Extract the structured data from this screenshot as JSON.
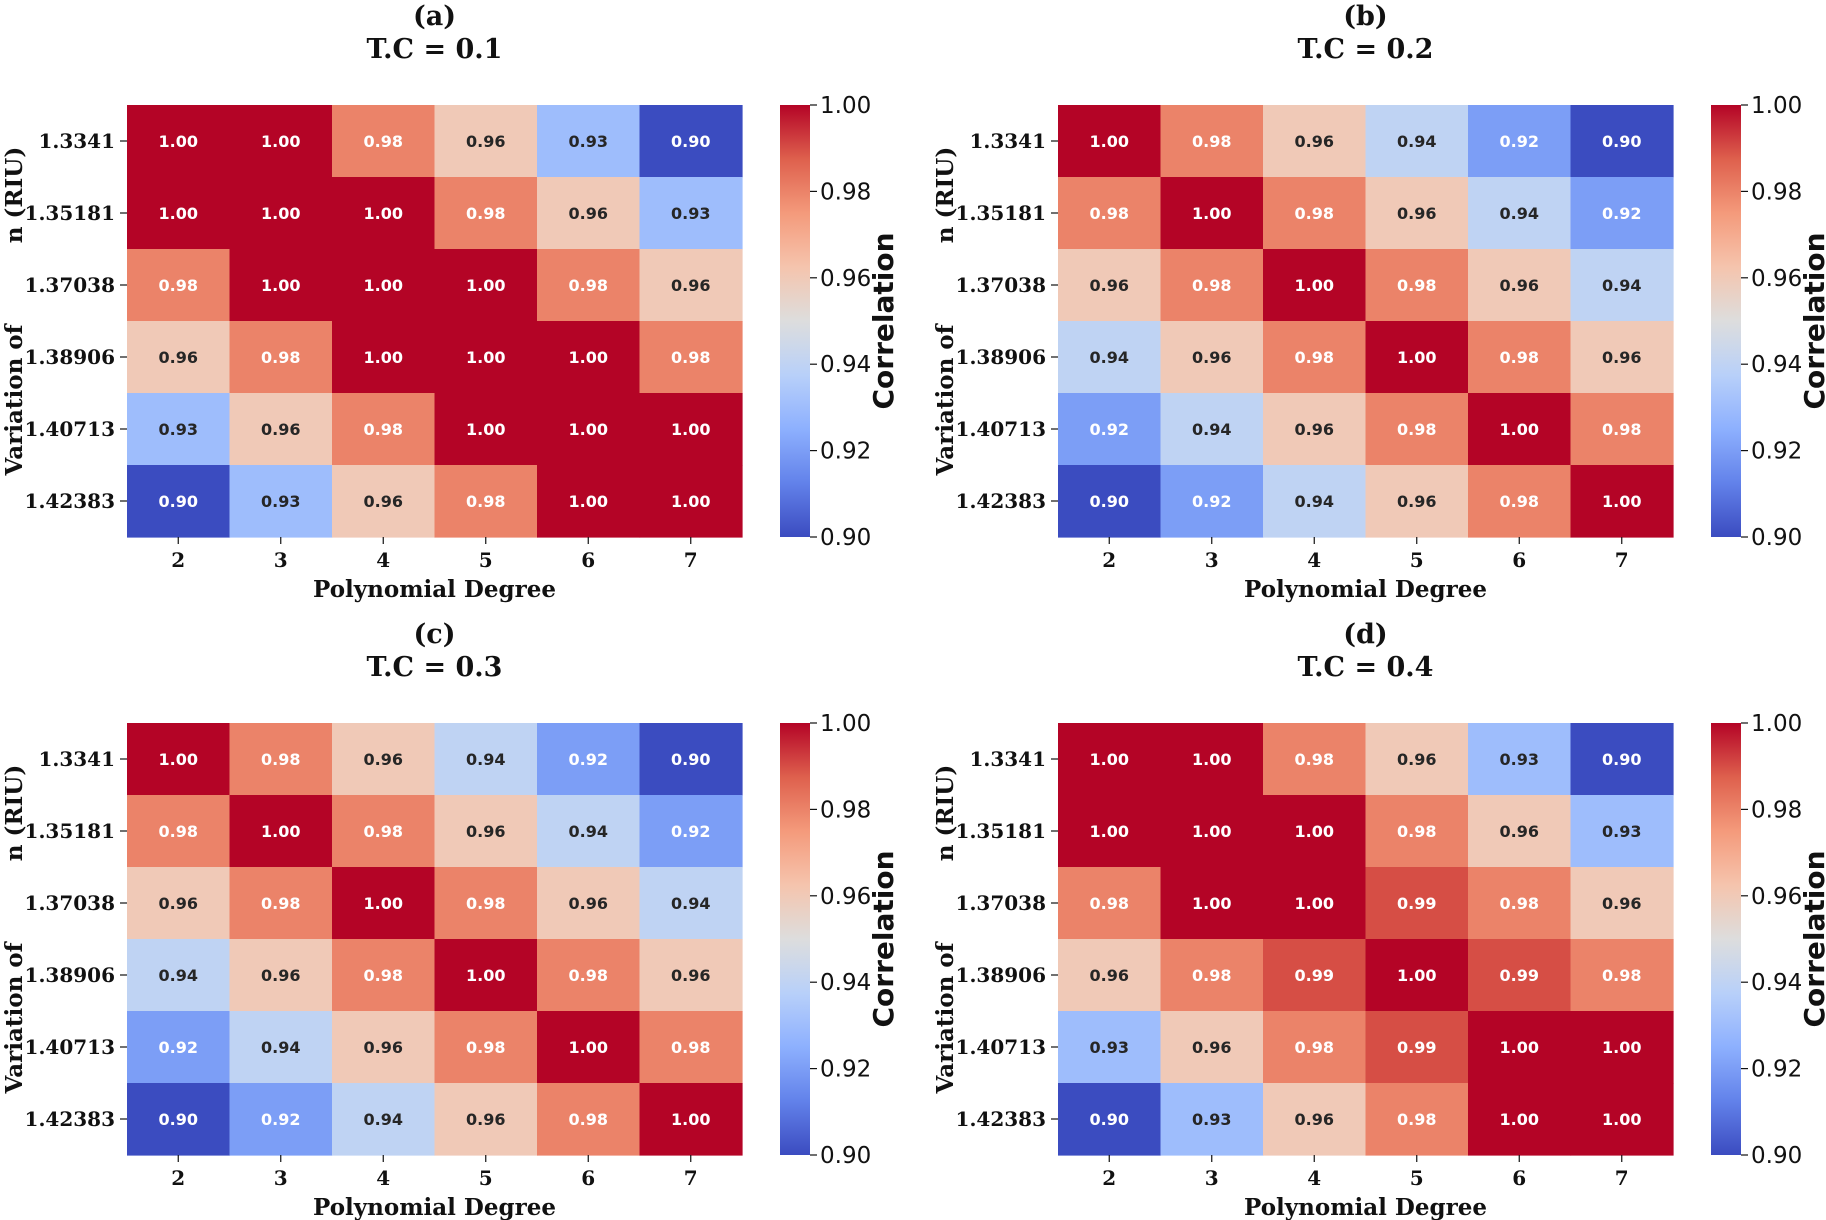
{
  "chart_data": [
    {
      "type": "heatmap",
      "panel": "(a)",
      "title": "T.C = 0.1",
      "xlabel": "Polynomial Degree",
      "ylabel_top": "n (RIU)",
      "ylabel_bottom": "Variation of",
      "x_categories": [
        "2",
        "3",
        "4",
        "5",
        "6",
        "7"
      ],
      "y_categories": [
        "1.3341",
        "1.35181",
        "1.37038",
        "1.38906",
        "1.40713",
        "1.42383"
      ],
      "values": [
        [
          1.0,
          1.0,
          0.98,
          0.96,
          0.93,
          0.9
        ],
        [
          1.0,
          1.0,
          1.0,
          0.98,
          0.96,
          0.93
        ],
        [
          0.98,
          1.0,
          1.0,
          1.0,
          0.98,
          0.96
        ],
        [
          0.96,
          0.98,
          1.0,
          1.0,
          1.0,
          0.98
        ],
        [
          0.93,
          0.96,
          0.98,
          1.0,
          1.0,
          1.0
        ],
        [
          0.9,
          0.93,
          0.96,
          0.98,
          1.0,
          1.0
        ]
      ],
      "colorbar_label": "Correlation",
      "colorbar_ticks": [
        "0.90",
        "0.92",
        "0.94",
        "0.96",
        "0.98",
        "1.00"
      ],
      "vmin": 0.9,
      "vmax": 1.0
    },
    {
      "type": "heatmap",
      "panel": "(b)",
      "title": "T.C = 0.2",
      "xlabel": "Polynomial Degree",
      "ylabel_top": "n (RIU)",
      "ylabel_bottom": "Variation of",
      "x_categories": [
        "2",
        "3",
        "4",
        "5",
        "6",
        "7"
      ],
      "y_categories": [
        "1.3341",
        "1.35181",
        "1.37038",
        "1.38906",
        "1.40713",
        "1.42383"
      ],
      "values": [
        [
          1.0,
          0.98,
          0.96,
          0.94,
          0.92,
          0.9
        ],
        [
          0.98,
          1.0,
          0.98,
          0.96,
          0.94,
          0.92
        ],
        [
          0.96,
          0.98,
          1.0,
          0.98,
          0.96,
          0.94
        ],
        [
          0.94,
          0.96,
          0.98,
          1.0,
          0.98,
          0.96
        ],
        [
          0.92,
          0.94,
          0.96,
          0.98,
          1.0,
          0.98
        ],
        [
          0.9,
          0.92,
          0.94,
          0.96,
          0.98,
          1.0
        ]
      ],
      "colorbar_label": "Correlation",
      "colorbar_ticks": [
        "0.90",
        "0.92",
        "0.94",
        "0.96",
        "0.98",
        "1.00"
      ],
      "vmin": 0.9,
      "vmax": 1.0
    },
    {
      "type": "heatmap",
      "panel": "(c)",
      "title": "T.C = 0.3",
      "xlabel": "Polynomial Degree",
      "ylabel_top": "n (RIU)",
      "ylabel_bottom": "Variation of",
      "x_categories": [
        "2",
        "3",
        "4",
        "5",
        "6",
        "7"
      ],
      "y_categories": [
        "1.3341",
        "1.35181",
        "1.37038",
        "1.38906",
        "1.40713",
        "1.42383"
      ],
      "values": [
        [
          1.0,
          0.98,
          0.96,
          0.94,
          0.92,
          0.9
        ],
        [
          0.98,
          1.0,
          0.98,
          0.96,
          0.94,
          0.92
        ],
        [
          0.96,
          0.98,
          1.0,
          0.98,
          0.96,
          0.94
        ],
        [
          0.94,
          0.96,
          0.98,
          1.0,
          0.98,
          0.96
        ],
        [
          0.92,
          0.94,
          0.96,
          0.98,
          1.0,
          0.98
        ],
        [
          0.9,
          0.92,
          0.94,
          0.96,
          0.98,
          1.0
        ]
      ],
      "colorbar_label": "Correlation",
      "colorbar_ticks": [
        "0.90",
        "0.92",
        "0.94",
        "0.96",
        "0.98",
        "1.00"
      ],
      "vmin": 0.9,
      "vmax": 1.0
    },
    {
      "type": "heatmap",
      "panel": "(d)",
      "title": "T.C = 0.4",
      "xlabel": "Polynomial Degree",
      "ylabel_top": "n (RIU)",
      "ylabel_bottom": "Variation of",
      "x_categories": [
        "2",
        "3",
        "4",
        "5",
        "6",
        "7"
      ],
      "y_categories": [
        "1.3341",
        "1.35181",
        "1.37038",
        "1.38906",
        "1.40713",
        "1.42383"
      ],
      "values": [
        [
          1.0,
          1.0,
          0.98,
          0.96,
          0.93,
          0.9
        ],
        [
          1.0,
          1.0,
          1.0,
          0.98,
          0.96,
          0.93
        ],
        [
          0.98,
          1.0,
          1.0,
          0.99,
          0.98,
          0.96
        ],
        [
          0.96,
          0.98,
          0.99,
          1.0,
          0.99,
          0.98
        ],
        [
          0.93,
          0.96,
          0.98,
          0.99,
          1.0,
          1.0
        ],
        [
          0.9,
          0.93,
          0.96,
          0.98,
          1.0,
          1.0
        ]
      ],
      "colorbar_label": "Correlation",
      "colorbar_ticks": [
        "0.90",
        "0.92",
        "0.94",
        "0.96",
        "0.98",
        "1.00"
      ],
      "vmin": 0.9,
      "vmax": 1.0
    }
  ]
}
